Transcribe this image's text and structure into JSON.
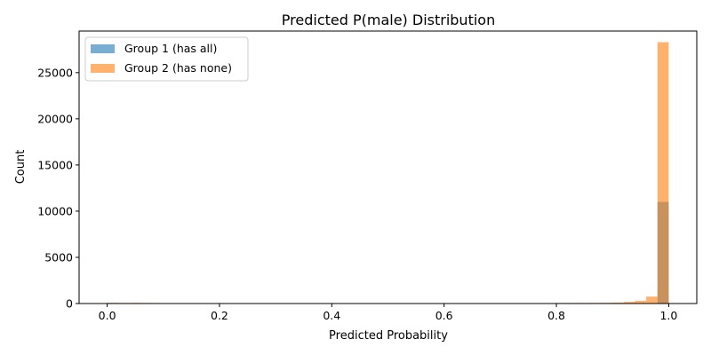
{
  "chart_data": {
    "type": "bar",
    "title": "Predicted P(male) Distribution",
    "xlabel": "Predicted Probability",
    "ylabel": "Count",
    "xlim": [
      -0.05,
      1.05
    ],
    "ylim": [
      0,
      29500
    ],
    "xticks": [
      0.0,
      0.2,
      0.4,
      0.6,
      0.8,
      1.0
    ],
    "xtick_labels": [
      "0.0",
      "0.2",
      "0.4",
      "0.6",
      "0.8",
      "1.0"
    ],
    "yticks": [
      0,
      5000,
      10000,
      15000,
      20000,
      25000
    ],
    "ytick_labels": [
      "0",
      "5000",
      "10000",
      "15000",
      "20000",
      "25000"
    ],
    "bin_width": 0.02,
    "legend_position": "top-left",
    "grid": false,
    "series": [
      {
        "name": "Group 1 (has all)",
        "color": "#1f77b4",
        "alpha": 0.6,
        "bins": [
          {
            "x0": 0.98,
            "count": 11000
          }
        ]
      },
      {
        "name": "Group 2 (has none)",
        "color": "#ff7f0e",
        "alpha": 0.6,
        "bins": [
          {
            "x0": 0.0,
            "count": 80
          },
          {
            "x0": 0.02,
            "count": 60
          },
          {
            "x0": 0.04,
            "count": 70
          },
          {
            "x0": 0.06,
            "count": 60
          },
          {
            "x0": 0.08,
            "count": 50
          },
          {
            "x0": 0.12,
            "count": 40
          },
          {
            "x0": 0.18,
            "count": 40
          },
          {
            "x0": 0.76,
            "count": 40
          },
          {
            "x0": 0.78,
            "count": 50
          },
          {
            "x0": 0.8,
            "count": 60
          },
          {
            "x0": 0.82,
            "count": 60
          },
          {
            "x0": 0.84,
            "count": 60
          },
          {
            "x0": 0.86,
            "count": 70
          },
          {
            "x0": 0.88,
            "count": 80
          },
          {
            "x0": 0.9,
            "count": 100
          },
          {
            "x0": 0.92,
            "count": 180
          },
          {
            "x0": 0.94,
            "count": 300
          },
          {
            "x0": 0.96,
            "count": 750
          },
          {
            "x0": 0.98,
            "count": 28300
          }
        ]
      }
    ]
  }
}
